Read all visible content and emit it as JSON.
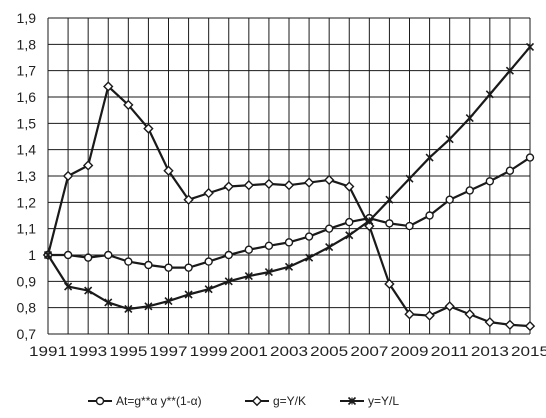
{
  "chart_data": {
    "type": "line",
    "x": [
      1991,
      1992,
      1993,
      1994,
      1995,
      1996,
      1997,
      1998,
      1999,
      2000,
      2001,
      2002,
      2003,
      2004,
      2005,
      2006,
      2007,
      2008,
      2009,
      2010,
      2011,
      2012,
      2013,
      2014,
      2015
    ],
    "x_tick_labels": [
      "1991",
      "1993",
      "1995",
      "1997",
      "1999",
      "2001",
      "2003",
      "2005",
      "2007",
      "2009",
      "2011",
      "2013",
      "2015"
    ],
    "y_tick_labels": [
      "0,7",
      "0,8",
      "0,9",
      "1",
      "1,1",
      "1,2",
      "1,3",
      "1,4",
      "1,5",
      "1,6",
      "1,7",
      "1,8",
      "1,9"
    ],
    "ylim": [
      0.7,
      1.9
    ],
    "xlim": [
      1991,
      2015
    ],
    "grid": true,
    "legend_position": "bottom",
    "series": [
      {
        "name": "At=g**α y**(1-α)",
        "marker": "circle",
        "values": [
          1.0,
          1.0,
          0.99,
          1.0,
          0.975,
          0.962,
          0.952,
          0.952,
          0.975,
          1.0,
          1.02,
          1.035,
          1.048,
          1.07,
          1.1,
          1.125,
          1.14,
          1.12,
          1.11,
          1.15,
          1.21,
          1.245,
          1.28,
          1.32,
          1.37
        ]
      },
      {
        "name": "g=Y/K",
        "marker": "diamond",
        "values": [
          1.0,
          1.3,
          1.34,
          1.64,
          1.57,
          1.48,
          1.32,
          1.21,
          1.235,
          1.26,
          1.265,
          1.27,
          1.265,
          1.275,
          1.285,
          1.26,
          1.11,
          0.89,
          0.775,
          0.77,
          0.805,
          0.775,
          0.745,
          0.735,
          0.73
        ]
      },
      {
        "name": "y=Y/L",
        "marker": "x",
        "values": [
          1.0,
          0.88,
          0.865,
          0.82,
          0.795,
          0.805,
          0.825,
          0.85,
          0.87,
          0.9,
          0.92,
          0.935,
          0.955,
          0.99,
          1.03,
          1.075,
          1.13,
          1.21,
          1.29,
          1.37,
          1.44,
          1.52,
          1.61,
          1.7,
          1.79
        ]
      }
    ]
  },
  "colors": {
    "line": "#1a1a1a",
    "grid": "#1a1a1a",
    "marker_fill": "#ffffff"
  }
}
